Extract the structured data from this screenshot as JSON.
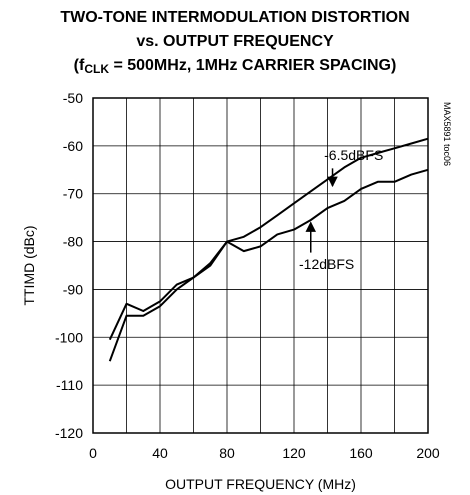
{
  "title": {
    "line1": "TWO-TONE INTERMODULATION DISTORTION",
    "line2": "vs. OUTPUT FREQUENCY",
    "line3_pre": "(f",
    "line3_sub": "CLK",
    "line3_post": " = 500MHz, 1MHz CARRIER SPACING)"
  },
  "figure_code": "MAX5891 toc06",
  "chart_data": {
    "type": "line",
    "xlabel": "OUTPUT FREQUENCY (MHz)",
    "ylabel": "TTIMD (dBc)",
    "xlim": [
      0,
      200
    ],
    "ylim": [
      -120,
      -50
    ],
    "xticks": [
      0,
      40,
      80,
      120,
      160,
      200
    ],
    "yticks": [
      -50,
      -60,
      -70,
      -80,
      -90,
      -100,
      -110,
      -120
    ],
    "grid": true,
    "series": [
      {
        "name": "-6.5dBFS",
        "x": [
          10,
          20,
          30,
          40,
          50,
          60,
          70,
          80,
          90,
          100,
          110,
          120,
          130,
          140,
          150,
          160,
          170,
          180,
          190,
          200
        ],
        "y": [
          -105,
          -95.5,
          -95.5,
          -93.5,
          -90,
          -87.5,
          -84.5,
          -80,
          -79,
          -77,
          -74.5,
          -72,
          -69.5,
          -67,
          -64.5,
          -62.5,
          -61.5,
          -60.5,
          -59.5,
          -58.5
        ]
      },
      {
        "name": "-12dBFS",
        "x": [
          10,
          20,
          30,
          40,
          50,
          60,
          70,
          80,
          90,
          100,
          110,
          120,
          130,
          140,
          150,
          160,
          170,
          180,
          190,
          200
        ],
        "y": [
          -100.5,
          -93,
          -94.5,
          -92.5,
          -89,
          -87.5,
          -85,
          -80,
          -82,
          -81,
          -78.5,
          -77.5,
          -75.5,
          -73,
          -71.5,
          -69,
          -67.5,
          -67.5,
          -66,
          -65
        ]
      }
    ],
    "annotations": [
      {
        "text": "-6.5dBFS",
        "series": 0
      },
      {
        "text": "-12dBFS",
        "series": 1
      }
    ]
  }
}
